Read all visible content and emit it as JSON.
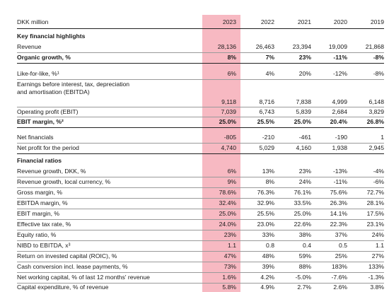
{
  "header": {
    "label": "DKK million",
    "years": [
      "2023",
      "2022",
      "2021",
      "2020",
      "2019"
    ]
  },
  "sections": [
    {
      "title": "Key financial highlights",
      "rows": [
        {
          "label": "Revenue",
          "values": [
            "28,136",
            "26,463",
            "23,394",
            "19,009",
            "21,868"
          ]
        },
        {
          "label": "Organic growth, %",
          "values": [
            "8%",
            "7%",
            "23%",
            "-11%",
            "-8%"
          ],
          "bold": true
        },
        {
          "label": "Like-for-like, %¹",
          "values": [
            "6%",
            "4%",
            "20%",
            "-12%",
            "-8%"
          ]
        },
        {
          "label": "Earnings before interest, tax, depreciation",
          "label2": "and amortisation (EBITDA)",
          "values": [
            "9,118",
            "8,716",
            "7,838",
            "4,999",
            "6,148"
          ]
        },
        {
          "label": "Operating profit (EBIT)",
          "values": [
            "7,039",
            "6,743",
            "5,839",
            "2,684",
            "3,829"
          ]
        },
        {
          "label": "EBIT margin, %²",
          "values": [
            "25.0%",
            "25.5%",
            "25.0%",
            "20.4%",
            "26.8%"
          ],
          "bold": true
        },
        {
          "label": "Net financials",
          "values": [
            "-805",
            "-210",
            "-461",
            "-190",
            "1"
          ]
        },
        {
          "label": "Net profit for the period",
          "values": [
            "4,740",
            "5,029",
            "4,160",
            "1,938",
            "2,945"
          ]
        }
      ]
    },
    {
      "title": "Financial ratios",
      "rows": [
        {
          "label": "Revenue growth, DKK, %",
          "values": [
            "6%",
            "13%",
            "23%",
            "-13%",
            "-4%"
          ]
        },
        {
          "label": "Revenue growth, local currency, %",
          "values": [
            "9%",
            "8%",
            "24%",
            "-11%",
            "-6%"
          ]
        },
        {
          "label": "Gross margin, %",
          "values": [
            "78.6%",
            "76.3%",
            "76.1%",
            "75.6%",
            "72.7%"
          ]
        },
        {
          "label": "EBITDA margin, %",
          "values": [
            "32.4%",
            "32.9%",
            "33.5%",
            "26.3%",
            "28.1%"
          ]
        },
        {
          "label": "EBIT margin, %",
          "values": [
            "25.0%",
            "25.5%",
            "25.0%",
            "14.1%",
            "17.5%"
          ]
        },
        {
          "label": "Effective tax rate, %",
          "values": [
            "24.0%",
            "23.0%",
            "22.6%",
            "22.3%",
            "23.1%"
          ]
        },
        {
          "label": "Equity ratio, %",
          "values": [
            "23%",
            "33%",
            "38%",
            "37%",
            "24%"
          ]
        },
        {
          "label": "NIBD to EBITDA, x³",
          "values": [
            "1.1",
            "0.8",
            "0.4",
            "0.5",
            "1.1"
          ]
        },
        {
          "label": "Return on invested capital (ROIC), %",
          "values": [
            "47%",
            "48%",
            "59%",
            "25%",
            "27%"
          ]
        },
        {
          "label": "Cash conversion incl. lease payments, %",
          "values": [
            "73%",
            "39%",
            "88%",
            "183%",
            "133%"
          ]
        },
        {
          "label": "Net working capital, % of last 12 months' revenue",
          "values": [
            "1.6%",
            "4.2%",
            "-5.0%",
            "-7.6%",
            "-1.3%"
          ]
        },
        {
          "label": "Capital expenditure, % of revenue",
          "values": [
            "5.8%",
            "4.9%",
            "2.7%",
            "2.6%",
            "3.8%"
          ]
        }
      ]
    }
  ]
}
